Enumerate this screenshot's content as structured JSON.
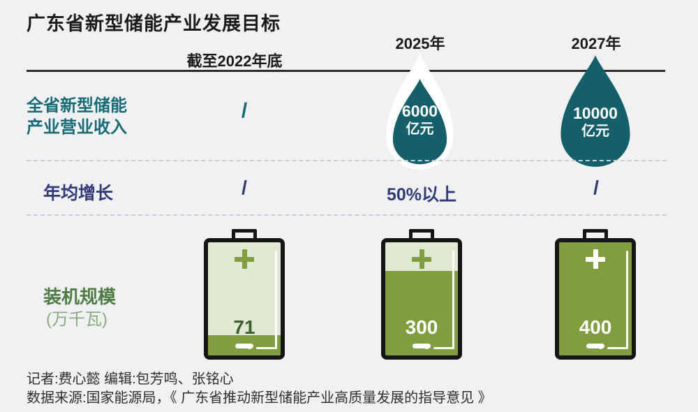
{
  "title": "广东省新型储能产业发展目标",
  "columns": [
    {
      "header": "截至2022年底"
    },
    {
      "header": "2025年"
    },
    {
      "header": "2027年"
    }
  ],
  "rows": {
    "revenue": {
      "label_line1": "全省新型储能",
      "label_line2": "产业营业收入",
      "value_2022": "/",
      "value_2025": {
        "number": "6000",
        "unit": "亿元"
      },
      "value_2027": {
        "number": "10000",
        "unit": "亿元"
      }
    },
    "growth": {
      "label": "年均增长",
      "value_2022": "/",
      "value_2025": "50%以上",
      "value_2027": "/"
    },
    "capacity": {
      "label": "装机规模",
      "unit_label": "(万千瓦)"
    }
  },
  "batteries": [
    {
      "value": "71",
      "fill_percent": 17.75
    },
    {
      "value": "300",
      "fill_percent": 75
    },
    {
      "value": "400",
      "fill_percent": 100
    }
  ],
  "footer": {
    "line1": "记者:费心懿  编辑:包芳鸣、张铭心",
    "line2": "数据来源:国家能源局，《 广东省推动新型储能产业高质量发展的指导意见 》"
  },
  "colors": {
    "background": "#f0f1f2",
    "teal": "#155f6a",
    "teal_text": "#186b75",
    "navy": "#333a78",
    "olive": "#809d40",
    "battery_light_green": "#e0ead3",
    "capacity_label_green": "#4e7c44",
    "capacity_unit_green": "#8aab80",
    "ink": "#1b1b1b"
  },
  "chart_data": {
    "type": "table",
    "title": "广东省新型储能产业发展目标",
    "columns": [
      "截至2022年底",
      "2025年",
      "2027年"
    ],
    "rows": [
      {
        "label": "全省新型储能产业营业收入",
        "unit": "亿元",
        "values": [
          "/",
          6000,
          10000
        ]
      },
      {
        "label": "年均增长",
        "values": [
          "/",
          "50%以上",
          "/"
        ]
      },
      {
        "label": "装机规模",
        "unit": "万千瓦",
        "values": [
          71,
          300,
          400
        ],
        "max": 400,
        "note": "battery fill depicts value relative to 400"
      }
    ],
    "legend_position": "none",
    "grid": "dashed row separators"
  }
}
